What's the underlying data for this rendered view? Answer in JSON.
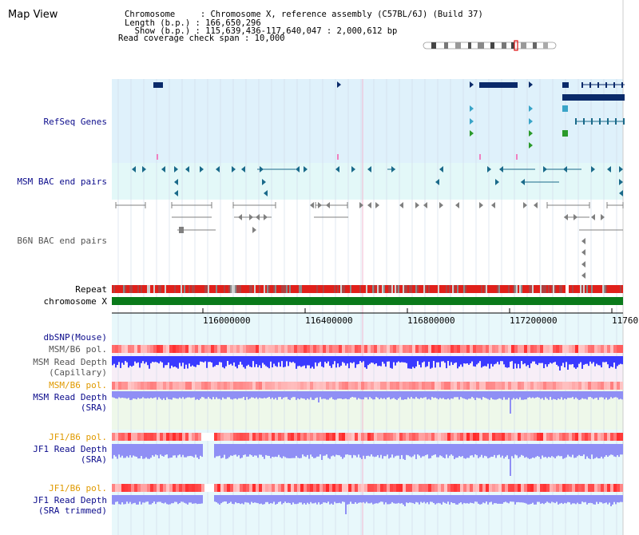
{
  "title": "Map View",
  "info": {
    "chromosome_line": "Chromosome     : Chromosome X, reference assembly (C57BL/6J) (Build 37)",
    "length_line": "Length (b.p.) : 166,650,296",
    "show_line": "  Show (b.p.) : 115,639,436-117,640,047 : 2,000,612 bp",
    "span_line": "Read coverage check span : 10,000"
  },
  "tracks": {
    "refseq": "RefSeq Genes",
    "msm_bac": "MSM BAC end pairs",
    "b6n_bac": "B6N BAC end pairs",
    "repeat": "Repeat",
    "chromosome": "chromosome X",
    "dbsnp": "dbSNP(Mouse)",
    "msm_b6_pol_1": "MSM/B6 pol.",
    "msm_depth_cap_1": "MSM Read Depth",
    "msm_depth_cap_2": "(Capillary)",
    "msm_b6_pol_2": "MSM/B6 pol.",
    "msm_depth_sra_1": "MSM Read Depth",
    "msm_depth_sra_2": "(SRA)",
    "jf1_b6_pol_1": "JF1/B6 pol.",
    "jf1_depth_sra_1": "JF1 Read Depth",
    "jf1_depth_sra_2": "(SRA)",
    "jf1_b6_pol_2": "JF1/B6 pol.",
    "jf1_depth_trim_1": "JF1 Read Depth",
    "jf1_depth_trim_2": "(SRA trimmed)"
  },
  "axis": {
    "ticks": [
      "116000000",
      "116400000",
      "116800000",
      "117200000",
      "11760"
    ]
  },
  "colors": {
    "refseq_bg": "#dff1fb",
    "msm_bg": "#e3f8f8",
    "gene_dark": "#0a2a6a",
    "gene_light": "#39a4c8",
    "gene_green": "#2a9a2a",
    "msm_pair": "#1a6a8a",
    "b6n_pair": "#808080",
    "repeat_red": "#e0201a",
    "chrom_green": "#0a7a1a",
    "navy_label": "#0c0c8c",
    "gray_label": "#555555",
    "orange_label": "#e09a00",
    "depth_blue": "#3a3aff",
    "depth_light": "#8f8ff5"
  }
}
